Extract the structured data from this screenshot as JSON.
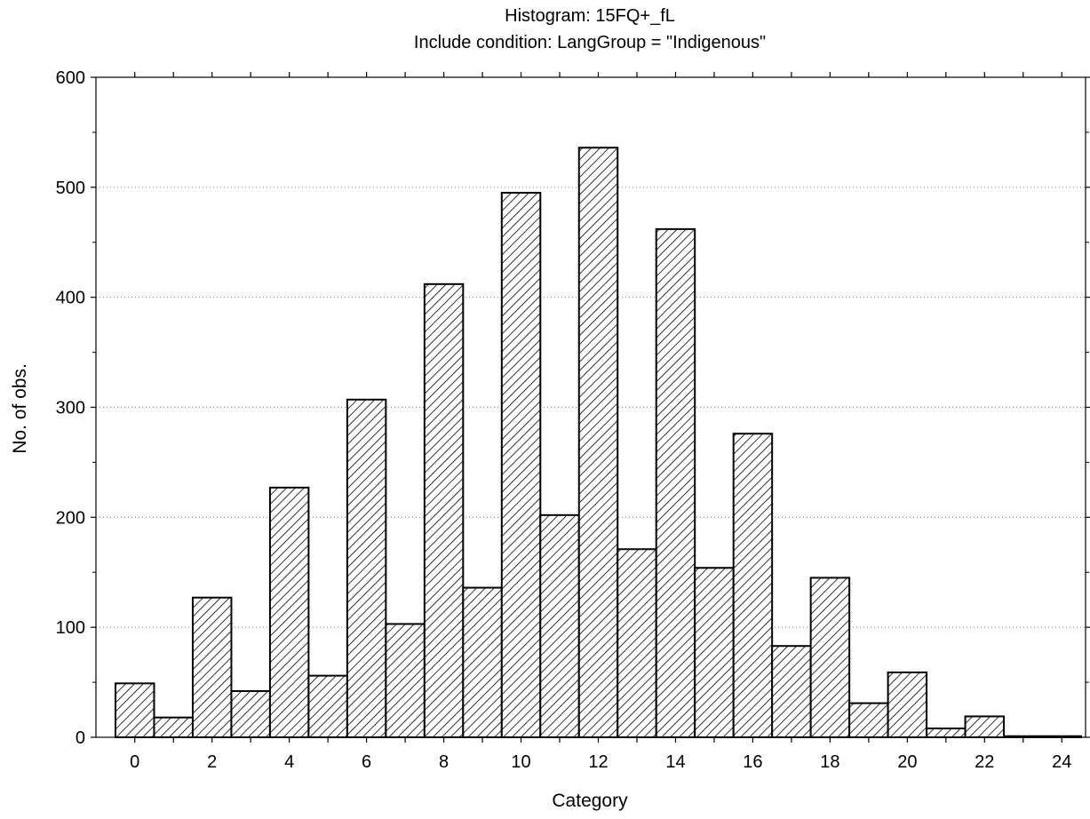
{
  "chart_data": {
    "type": "bar",
    "title": "Histogram: 15FQ+_fL",
    "subtitle": "Include condition: LangGroup = \"Indigenous\"",
    "xlabel": "Category",
    "ylabel": "No. of obs.",
    "categories": [
      "0",
      "1",
      "2",
      "3",
      "4",
      "5",
      "6",
      "7",
      "8",
      "9",
      "10",
      "11",
      "12",
      "13",
      "14",
      "15",
      "16",
      "17",
      "18",
      "19",
      "20",
      "21",
      "22",
      "23",
      "24"
    ],
    "values": [
      49,
      18,
      127,
      42,
      227,
      56,
      307,
      103,
      412,
      136,
      495,
      202,
      536,
      171,
      462,
      154,
      276,
      83,
      145,
      31,
      59,
      8,
      19,
      1,
      1
    ],
    "ylim": [
      0,
      600
    ],
    "yticks": [
      0,
      100,
      200,
      300,
      400,
      500,
      600
    ],
    "xticks": [
      "0",
      "2",
      "4",
      "6",
      "8",
      "10",
      "12",
      "14",
      "16",
      "18",
      "20",
      "22",
      "24"
    ],
    "grid": "horizontal dotted",
    "bar_pattern": "diagonal hatch"
  }
}
